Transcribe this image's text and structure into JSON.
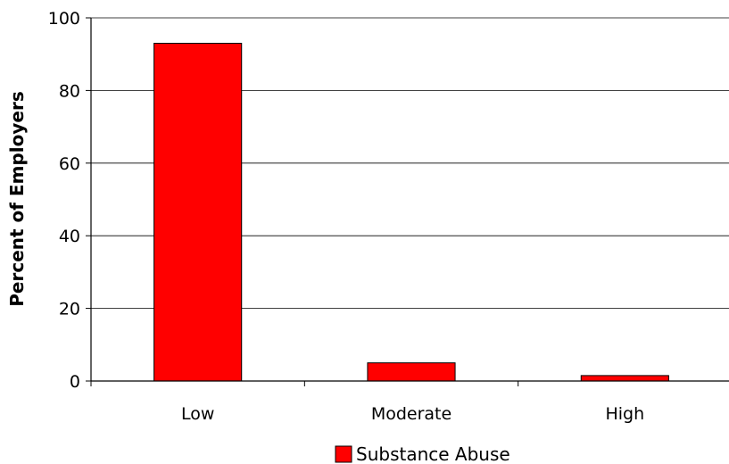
{
  "chart_data": {
    "type": "bar",
    "categories": [
      "Low",
      "Moderate",
      "High"
    ],
    "series": [
      {
        "name": "Substance Abuse",
        "values": [
          93,
          5,
          1.5
        ]
      }
    ],
    "title": "",
    "xlabel": "",
    "ylabel": "Percent of Employers",
    "ylim": [
      0,
      100
    ],
    "yticks": [
      0,
      20,
      40,
      60,
      80,
      100
    ],
    "grid": true,
    "legend": "bottom",
    "colors": {
      "bar": "#ff0000",
      "bar_border": "#000000",
      "grid": "#000000"
    }
  }
}
